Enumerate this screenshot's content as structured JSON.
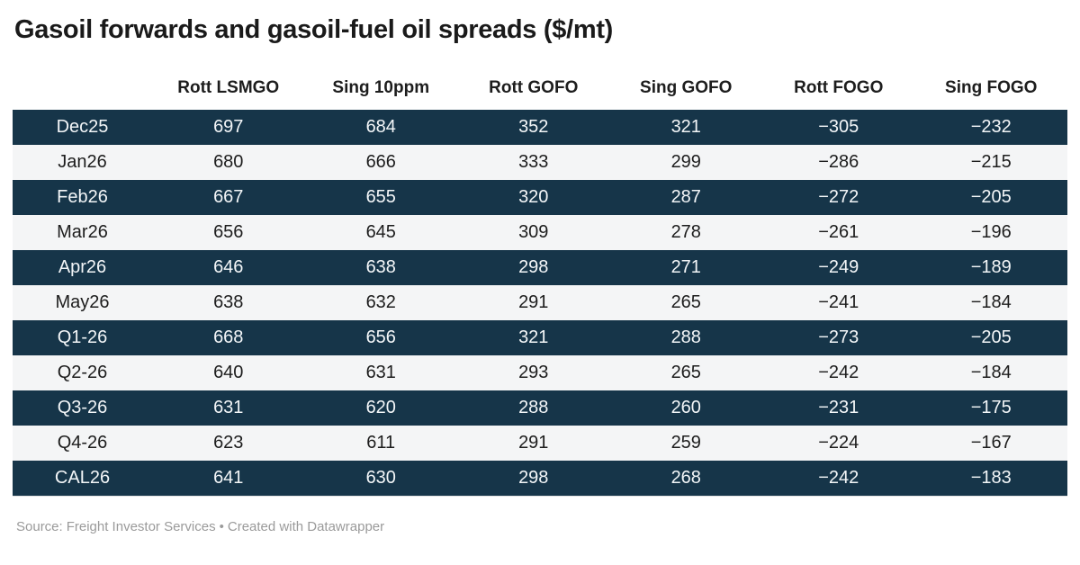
{
  "title": "Gasoil forwards and gasoil-fuel oil spreads ($/mt)",
  "table": {
    "row_label_header": "",
    "columns": [
      "Rott LSMGO",
      "Sing 10ppm",
      "Rott GOFO",
      "Sing GOFO",
      "Rott FOGO",
      "Sing FOGO"
    ],
    "rows": [
      {
        "label": "Dec25",
        "values": [
          "697",
          "684",
          "352",
          "321",
          "−305",
          "−232"
        ]
      },
      {
        "label": "Jan26",
        "values": [
          "680",
          "666",
          "333",
          "299",
          "−286",
          "−215"
        ]
      },
      {
        "label": "Feb26",
        "values": [
          "667",
          "655",
          "320",
          "287",
          "−272",
          "−205"
        ]
      },
      {
        "label": "Mar26",
        "values": [
          "656",
          "645",
          "309",
          "278",
          "−261",
          "−196"
        ]
      },
      {
        "label": "Apr26",
        "values": [
          "646",
          "638",
          "298",
          "271",
          "−249",
          "−189"
        ]
      },
      {
        "label": "May26",
        "values": [
          "638",
          "632",
          "291",
          "265",
          "−241",
          "−184"
        ]
      },
      {
        "label": "Q1-26",
        "values": [
          "668",
          "656",
          "321",
          "288",
          "−273",
          "−205"
        ]
      },
      {
        "label": "Q2-26",
        "values": [
          "640",
          "631",
          "293",
          "265",
          "−242",
          "−184"
        ]
      },
      {
        "label": "Q3-26",
        "values": [
          "631",
          "620",
          "288",
          "260",
          "−231",
          "−175"
        ]
      },
      {
        "label": "Q4-26",
        "values": [
          "623",
          "611",
          "291",
          "259",
          "−224",
          "−167"
        ]
      },
      {
        "label": "CAL26",
        "values": [
          "641",
          "630",
          "298",
          "268",
          "−242",
          "−183"
        ]
      }
    ]
  },
  "footer": {
    "source_label": "Source:",
    "source": "Freight Investor Services",
    "separator": "•",
    "attribution": "Created with Datawrapper"
  },
  "colors": {
    "row_dark_bg": "#163549",
    "row_light_bg": "#f4f5f6",
    "text_on_dark": "#f3f6f8",
    "text_dark": "#1d1d1d",
    "title_text": "#1a1a1a",
    "footer_text": "#9a9a9a"
  },
  "chart_data": {
    "type": "table",
    "title": "Gasoil forwards and gasoil-fuel oil spreads ($/mt)",
    "columns": [
      "",
      "Rott LSMGO",
      "Sing 10ppm",
      "Rott GOFO",
      "Sing GOFO",
      "Rott FOGO",
      "Sing FOGO"
    ],
    "rows": [
      [
        "Dec25",
        697,
        684,
        352,
        321,
        -305,
        -232
      ],
      [
        "Jan26",
        680,
        666,
        333,
        299,
        -286,
        -215
      ],
      [
        "Feb26",
        667,
        655,
        320,
        287,
        -272,
        -205
      ],
      [
        "Mar26",
        656,
        645,
        309,
        278,
        -261,
        -196
      ],
      [
        "Apr26",
        646,
        638,
        298,
        271,
        -249,
        -189
      ],
      [
        "May26",
        638,
        632,
        291,
        265,
        -241,
        -184
      ],
      [
        "Q1-26",
        668,
        656,
        321,
        288,
        -273,
        -205
      ],
      [
        "Q2-26",
        640,
        631,
        293,
        265,
        -242,
        -184
      ],
      [
        "Q3-26",
        631,
        620,
        288,
        260,
        -231,
        -175
      ],
      [
        "Q4-26",
        623,
        611,
        291,
        259,
        -224,
        -167
      ],
      [
        "CAL26",
        641,
        630,
        298,
        268,
        -242,
        -183
      ]
    ],
    "units": "$/mt",
    "row_stripe_pattern": "odd-rows-dark-navy",
    "source": "Freight Investor Services"
  }
}
